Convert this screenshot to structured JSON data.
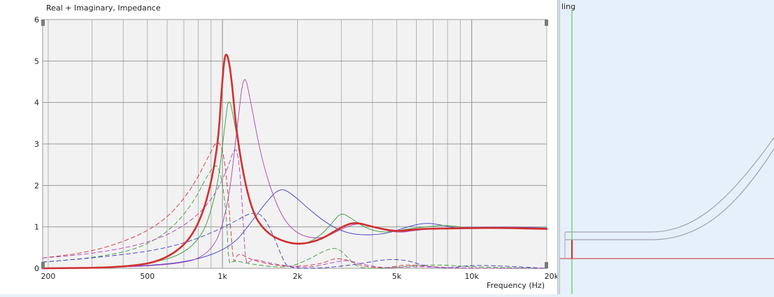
{
  "right_panel": {
    "label_fragment": "ling"
  },
  "chart_data": {
    "type": "line",
    "title": "Real + Imaginary, Impedance",
    "xlabel": "Frequency (Hz)",
    "ylabel": "",
    "x_scale": "log",
    "xlim": [
      190,
      20000
    ],
    "ylim": [
      0,
      6
    ],
    "grid": true,
    "x_ticks": [
      {
        "value": 200,
        "label": "200"
      },
      {
        "value": 500,
        "label": "500"
      },
      {
        "value": 1000,
        "label": "1k"
      },
      {
        "value": 2000,
        "label": "2k"
      },
      {
        "value": 5000,
        "label": "5k"
      },
      {
        "value": 10000,
        "label": "10k"
      },
      {
        "value": 20000,
        "label": "20k"
      }
    ],
    "y_ticks": [
      {
        "value": 0,
        "label": "0"
      },
      {
        "value": 1,
        "label": "1"
      },
      {
        "value": 2,
        "label": "2"
      },
      {
        "value": 3,
        "label": "3"
      },
      {
        "value": 4,
        "label": "4"
      },
      {
        "value": 5,
        "label": "5"
      },
      {
        "value": 6,
        "label": "6"
      }
    ],
    "series": [
      {
        "color": "#d03030",
        "width": 2.6,
        "dash": "",
        "points": [
          [
            190,
            0
          ],
          [
            400,
            0.02
          ],
          [
            600,
            0.2
          ],
          [
            800,
            0.9
          ],
          [
            950,
            2.6
          ],
          [
            1000,
            4.6
          ],
          [
            1030,
            5.3
          ],
          [
            1080,
            4.8
          ],
          [
            1150,
            3.0
          ],
          [
            1300,
            1.4
          ],
          [
            1500,
            0.85
          ],
          [
            1800,
            0.62
          ],
          [
            2100,
            0.58
          ],
          [
            2500,
            0.7
          ],
          [
            3000,
            1.0
          ],
          [
            3400,
            1.12
          ],
          [
            4000,
            1.0
          ],
          [
            5000,
            0.88
          ],
          [
            6000,
            0.95
          ],
          [
            8000,
            0.96
          ],
          [
            12000,
            0.98
          ],
          [
            20000,
            0.95
          ]
        ]
      },
      {
        "color": "#3a3ac8",
        "width": 0.9,
        "dash": "",
        "points": [
          [
            190,
            0
          ],
          [
            500,
            0.05
          ],
          [
            800,
            0.2
          ],
          [
            1100,
            0.55
          ],
          [
            1300,
            1.1
          ],
          [
            1500,
            1.6
          ],
          [
            1700,
            1.95
          ],
          [
            1900,
            1.8
          ],
          [
            2200,
            1.45
          ],
          [
            2600,
            1.1
          ],
          [
            3000,
            0.9
          ],
          [
            3500,
            0.8
          ],
          [
            4500,
            0.82
          ],
          [
            5500,
            1.0
          ],
          [
            6500,
            1.1
          ],
          [
            7500,
            1.05
          ],
          [
            9000,
            0.95
          ],
          [
            12000,
            1.0
          ],
          [
            20000,
            0.98
          ]
        ]
      },
      {
        "color": "#3a9a3a",
        "width": 0.9,
        "dash": "",
        "points": [
          [
            190,
            0
          ],
          [
            500,
            0.05
          ],
          [
            800,
            0.5
          ],
          [
            950,
            1.8
          ],
          [
            1020,
            3.4
          ],
          [
            1060,
            4.2
          ],
          [
            1120,
            3.5
          ],
          [
            1250,
            1.8
          ],
          [
            1400,
            1.0
          ],
          [
            1700,
            0.65
          ],
          [
            2100,
            0.55
          ],
          [
            2500,
            0.8
          ],
          [
            2800,
            1.15
          ],
          [
            3000,
            1.35
          ],
          [
            3300,
            1.2
          ],
          [
            3800,
            0.95
          ],
          [
            4500,
            0.85
          ],
          [
            5500,
            0.95
          ],
          [
            6500,
            1.0
          ],
          [
            8000,
            1.05
          ],
          [
            10000,
            0.95
          ],
          [
            20000,
            0.98
          ]
        ]
      },
      {
        "color": "#b040b0",
        "width": 0.9,
        "dash": "",
        "points": [
          [
            190,
            0
          ],
          [
            600,
            0.05
          ],
          [
            900,
            0.3
          ],
          [
            1050,
            1.4
          ],
          [
            1150,
            3.5
          ],
          [
            1220,
            4.8
          ],
          [
            1300,
            4.0
          ],
          [
            1450,
            2.5
          ],
          [
            1700,
            1.3
          ],
          [
            2000,
            0.8
          ],
          [
            2500,
            0.7
          ],
          [
            3000,
            0.95
          ],
          [
            3500,
            1.1
          ],
          [
            4000,
            1.0
          ],
          [
            5000,
            0.85
          ],
          [
            6000,
            0.92
          ],
          [
            8000,
            0.98
          ],
          [
            12000,
            1.0
          ],
          [
            20000,
            0.97
          ]
        ]
      },
      {
        "color": "#d03030",
        "width": 0.9,
        "dash": "6,4",
        "points": [
          [
            190,
            0.25
          ],
          [
            300,
            0.4
          ],
          [
            450,
            0.75
          ],
          [
            600,
            1.2
          ],
          [
            750,
            1.9
          ],
          [
            880,
            2.7
          ],
          [
            950,
            3.1
          ],
          [
            1000,
            2.9
          ],
          [
            1040,
            2.2
          ],
          [
            1080,
            0.9
          ],
          [
            1110,
            0.05
          ],
          [
            1150,
            0.4
          ],
          [
            1300,
            0.2
          ],
          [
            1800,
            0.02
          ],
          [
            2500,
            0.1
          ],
          [
            2800,
            0.25
          ],
          [
            3200,
            0.2
          ],
          [
            3600,
            0.05
          ],
          [
            4500,
            0.0
          ],
          [
            5500,
            0.1
          ],
          [
            7000,
            0.03
          ],
          [
            10000,
            0.0
          ],
          [
            20000,
            0.0
          ]
        ]
      },
      {
        "color": "#3a9a3a",
        "width": 0.9,
        "dash": "6,4",
        "points": [
          [
            190,
            0.15
          ],
          [
            300,
            0.25
          ],
          [
            450,
            0.45
          ],
          [
            600,
            0.85
          ],
          [
            750,
            1.5
          ],
          [
            880,
            2.3
          ],
          [
            950,
            2.55
          ],
          [
            1000,
            2.1
          ],
          [
            1040,
            1.2
          ],
          [
            1060,
            0.05
          ],
          [
            1100,
            0.2
          ],
          [
            1300,
            0.1
          ],
          [
            1800,
            0.0
          ],
          [
            2200,
            0.2
          ],
          [
            2600,
            0.45
          ],
          [
            2900,
            0.5
          ],
          [
            3200,
            0.25
          ],
          [
            3500,
            0.0
          ],
          [
            4500,
            0.0
          ],
          [
            7000,
            0.1
          ],
          [
            10000,
            0.03
          ],
          [
            20000,
            0.0
          ]
        ]
      },
      {
        "color": "#3a3ac8",
        "width": 0.9,
        "dash": "6,4",
        "points": [
          [
            190,
            0.15
          ],
          [
            300,
            0.25
          ],
          [
            500,
            0.4
          ],
          [
            700,
            0.6
          ],
          [
            900,
            0.85
          ],
          [
            1100,
            1.1
          ],
          [
            1300,
            1.35
          ],
          [
            1450,
            1.3
          ],
          [
            1600,
            0.8
          ],
          [
            1750,
            0.2
          ],
          [
            1850,
            0.0
          ],
          [
            2500,
            0.0
          ],
          [
            3500,
            0.1
          ],
          [
            4500,
            0.22
          ],
          [
            5500,
            0.2
          ],
          [
            6500,
            0.05
          ],
          [
            8000,
            0.0
          ],
          [
            10000,
            0.08
          ],
          [
            14000,
            0.05
          ],
          [
            20000,
            0.0
          ]
        ]
      },
      {
        "color": "#b040b0",
        "width": 0.9,
        "dash": "6,4",
        "points": [
          [
            190,
            0.25
          ],
          [
            300,
            0.35
          ],
          [
            500,
            0.6
          ],
          [
            700,
            1.0
          ],
          [
            900,
            1.6
          ],
          [
            1050,
            2.4
          ],
          [
            1120,
            2.95
          ],
          [
            1160,
            2.7
          ],
          [
            1200,
            1.6
          ],
          [
            1240,
            0.0
          ],
          [
            1300,
            0.25
          ],
          [
            1600,
            0.1
          ],
          [
            2200,
            0.0
          ],
          [
            2800,
            0.15
          ],
          [
            3200,
            0.2
          ],
          [
            3600,
            0.1
          ],
          [
            4500,
            0.0
          ],
          [
            6000,
            0.05
          ],
          [
            9000,
            0.0
          ],
          [
            20000,
            0.0
          ]
        ]
      }
    ]
  }
}
